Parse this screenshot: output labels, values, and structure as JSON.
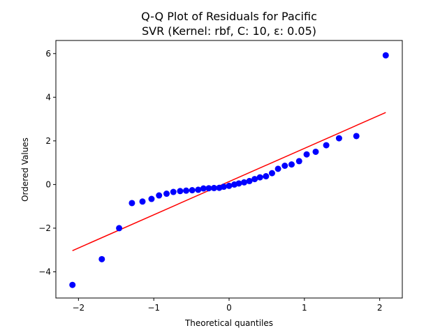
{
  "chart_data": {
    "type": "scatter",
    "title_line1": "Q-Q Plot of Residuals for Pacific",
    "title_line2": "SVR (Kernel: rbf, C: 10, ε: 0.05)",
    "xlabel": "Theoretical quantiles",
    "ylabel": "Ordered Values",
    "xlim": [
      -2.3,
      2.3
    ],
    "ylim": [
      -5.2,
      6.6
    ],
    "xticks": [
      -2,
      -1,
      0,
      1,
      2
    ],
    "xtick_labels": [
      "−2",
      "−1",
      "0",
      "1",
      "2"
    ],
    "yticks": [
      -4,
      -2,
      0,
      2,
      4,
      6
    ],
    "ytick_labels": [
      "−4",
      "−2",
      "0",
      "2",
      "4",
      "6"
    ],
    "grid": false,
    "colors": {
      "points": "#0000ff",
      "fit_line": "#ff0000"
    },
    "points": {
      "x": [
        -2.08,
        -1.69,
        -1.46,
        -1.29,
        -1.15,
        -1.03,
        -0.93,
        -0.83,
        -0.74,
        -0.65,
        -0.57,
        -0.49,
        -0.41,
        -0.34,
        -0.27,
        -0.2,
        -0.13,
        -0.07,
        0.0,
        0.07,
        0.13,
        0.2,
        0.27,
        0.34,
        0.41,
        0.49,
        0.57,
        0.65,
        0.74,
        0.83,
        0.93,
        1.03,
        1.15,
        1.29,
        1.46,
        1.69,
        2.08
      ],
      "y": [
        -4.6,
        -3.42,
        -2.0,
        -0.85,
        -0.78,
        -0.66,
        -0.5,
        -0.42,
        -0.34,
        -0.3,
        -0.28,
        -0.26,
        -0.24,
        -0.18,
        -0.17,
        -0.16,
        -0.15,
        -0.1,
        -0.06,
        0.0,
        0.05,
        0.1,
        0.16,
        0.25,
        0.33,
        0.38,
        0.52,
        0.72,
        0.86,
        0.92,
        1.07,
        1.38,
        1.5,
        1.8,
        2.12,
        2.22,
        5.92
      ]
    },
    "fit_line": {
      "x": [
        -2.08,
        2.08
      ],
      "y": [
        -3.03,
        3.3
      ]
    }
  }
}
